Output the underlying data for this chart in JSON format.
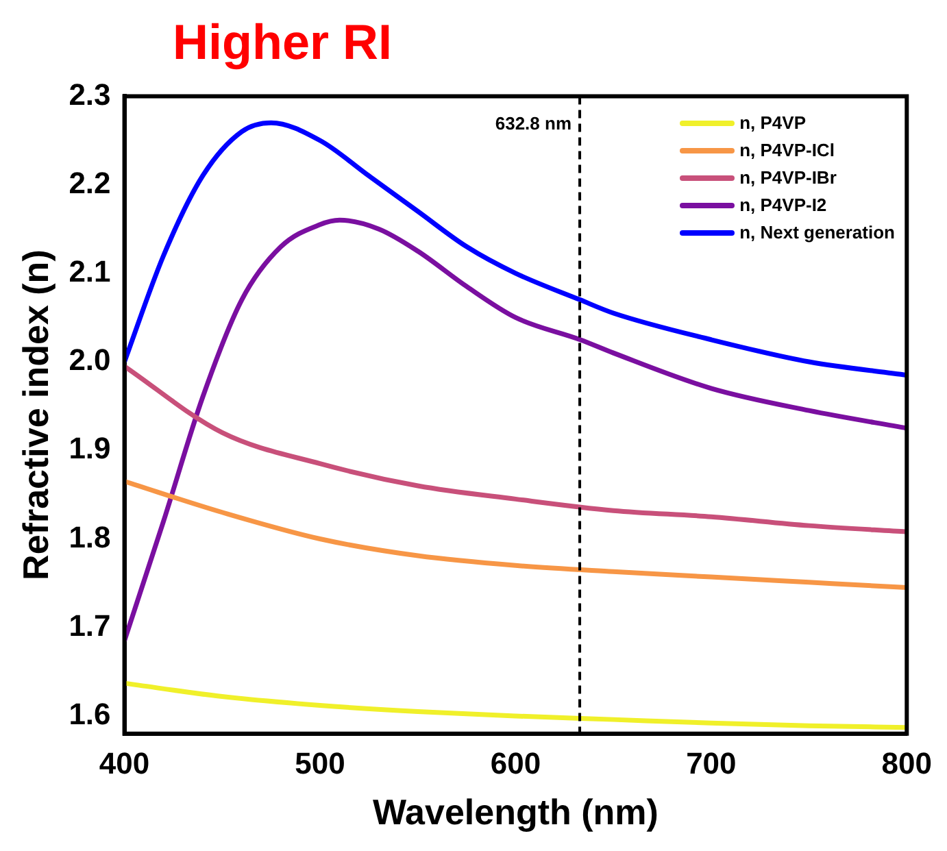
{
  "chart_data": {
    "type": "line",
    "title": "Higher RI",
    "xlabel": "Wavelength (nm)",
    "ylabel": "Refractive index (n)",
    "xlim": [
      400,
      800
    ],
    "xticks": [
      400,
      500,
      600,
      700,
      800
    ],
    "ylim": [
      1.58,
      2.3
    ],
    "yticks": [
      1.6,
      1.7,
      1.8,
      1.9,
      {
        "value": 2,
        "label": "2.0"
      },
      2.1,
      2.2,
      2.3
    ],
    "grid": false,
    "legend": "top right",
    "marker": "none",
    "line_style": "solid",
    "ref_lines": [
      {
        "axis": "x",
        "value": 632.8,
        "label": "632.8 nm",
        "color": "#000000",
        "line_style": "dashed"
      }
    ],
    "series": [
      {
        "name": "n, P4VP",
        "color": "#f0f02a",
        "x": [
          400,
          450,
          500,
          550,
          600,
          650,
          700,
          750,
          800
        ],
        "values": [
          1.637,
          1.622,
          1.612,
          1.605,
          1.6,
          1.596,
          1.592,
          1.589,
          1.587
        ]
      },
      {
        "name": "n, P4VP-ICl",
        "color": "#f79646",
        "x": [
          400,
          450,
          500,
          550,
          600,
          650,
          700,
          750,
          800
        ],
        "values": [
          1.865,
          1.83,
          1.8,
          1.781,
          1.77,
          1.763,
          1.757,
          1.751,
          1.745
        ]
      },
      {
        "name": "n, P4VP-IBr",
        "color": "#c8507a",
        "x": [
          400,
          450,
          500,
          550,
          600,
          650,
          700,
          750,
          800
        ],
        "values": [
          1.995,
          1.92,
          1.885,
          1.86,
          1.845,
          1.832,
          1.825,
          1.815,
          1.808
        ]
      },
      {
        "name": "n, P4VP-I2",
        "color": "#7a0fa0",
        "x": [
          400,
          420,
          440,
          460,
          480,
          500,
          510,
          530,
          550,
          575,
          600,
          633,
          650,
          700,
          750,
          800
        ],
        "values": [
          1.685,
          1.82,
          1.96,
          2.07,
          2.13,
          2.155,
          2.16,
          2.15,
          2.125,
          2.085,
          2.05,
          2.025,
          2.01,
          1.97,
          1.945,
          1.925
        ]
      },
      {
        "name": "n, Next generation",
        "color": "#0000ff",
        "x": [
          400,
          420,
          440,
          460,
          475,
          500,
          525,
          550,
          575,
          600,
          633,
          650,
          700,
          750,
          800
        ],
        "values": [
          2.0,
          2.12,
          2.21,
          2.26,
          2.27,
          2.25,
          2.21,
          2.17,
          2.13,
          2.1,
          2.07,
          2.055,
          2.025,
          2.0,
          1.985
        ]
      }
    ]
  }
}
